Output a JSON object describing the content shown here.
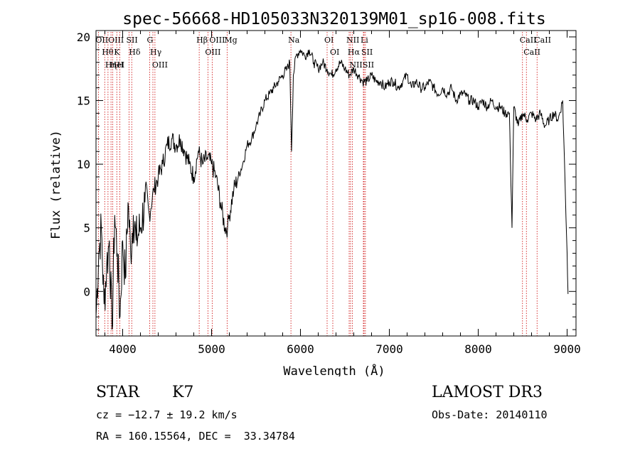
{
  "chart_data": {
    "type": "line",
    "title": "spec-56668-HD105033N320139M01_sp16-008.fits",
    "xlabel": "Wavelength (Å)",
    "ylabel": "Flux (relative)",
    "xlim": [
      3700,
      9100
    ],
    "ylim": [
      -3.5,
      20.5
    ],
    "xticks": [
      4000,
      5000,
      6000,
      7000,
      8000,
      9000
    ],
    "yticks": [
      0,
      5,
      10,
      15,
      20
    ],
    "series": [
      {
        "name": "flux",
        "x": [
          3700,
          3730,
          3760,
          3790,
          3820,
          3850,
          3880,
          3910,
          3940,
          3970,
          4000,
          4030,
          4060,
          4090,
          4120,
          4150,
          4200,
          4250,
          4300,
          4350,
          4400,
          4450,
          4500,
          4550,
          4600,
          4650,
          4700,
          4750,
          4800,
          4850,
          4900,
          4950,
          5000,
          5050,
          5100,
          5150,
          5180,
          5200,
          5250,
          5300,
          5350,
          5400,
          5450,
          5500,
          5550,
          5600,
          5650,
          5700,
          5750,
          5800,
          5850,
          5880,
          5900,
          5920,
          5950,
          6000,
          6050,
          6100,
          6150,
          6200,
          6250,
          6300,
          6350,
          6400,
          6450,
          6500,
          6550,
          6600,
          6650,
          6700,
          6750,
          6800,
          6850,
          6900,
          6950,
          7000,
          7050,
          7100,
          7150,
          7200,
          7250,
          7300,
          7350,
          7400,
          7450,
          7500,
          7550,
          7600,
          7650,
          7700,
          7750,
          7800,
          7850,
          7900,
          7950,
          8000,
          8050,
          8100,
          8150,
          8200,
          8250,
          8300,
          8350,
          8380,
          8400,
          8450,
          8500,
          8550,
          8600,
          8650,
          8700,
          8750,
          8800,
          8850,
          8900,
          8950,
          9000,
          9010
        ],
        "y": [
          -2,
          3,
          5,
          -1,
          2,
          4,
          -3,
          6,
          3,
          -2,
          4,
          1,
          7,
          3,
          6,
          4,
          5,
          7,
          6,
          8,
          9,
          10,
          11.5,
          12,
          11.5,
          12,
          11,
          10,
          9,
          11,
          10,
          10.5,
          10,
          9,
          7,
          5,
          5,
          6,
          8,
          9,
          10,
          11.5,
          12,
          13,
          14,
          15,
          15.5,
          16,
          16.5,
          17,
          17.5,
          18,
          11,
          17,
          18.5,
          19,
          18.5,
          19,
          18,
          17.5,
          18,
          17.5,
          17,
          17.5,
          18,
          17.5,
          17,
          17.5,
          17,
          16.5,
          16.5,
          17,
          16.5,
          16.5,
          16,
          16.5,
          16.5,
          16,
          16.5,
          17,
          16,
          16.5,
          16,
          16,
          16.5,
          16,
          15.5,
          16,
          15.5,
          16,
          15,
          15.5,
          15.5,
          15,
          15,
          14.5,
          15,
          14.5,
          15,
          14.5,
          14.5,
          14,
          14,
          5,
          14.5,
          13,
          14,
          13.5,
          14,
          13.5,
          14,
          13,
          13.5,
          14,
          13.5,
          15,
          3,
          -0.2
        ]
      }
    ],
    "spectral_lines": [
      {
        "label": "Hθ",
        "x": 3798
      },
      {
        "label": "OII",
        "x": 3727
      },
      {
        "label": "OIII",
        "x": 3869
      },
      {
        "label": "HeI",
        "x": 3889
      },
      {
        "label": "Hη",
        "x": 3835
      },
      {
        "label": "K",
        "x": 3934
      },
      {
        "label": "H",
        "x": 3968
      },
      {
        "label": "SII",
        "x": 4072
      },
      {
        "label": "Hδ",
        "x": 4102
      },
      {
        "label": "OIII",
        "x": 4363
      },
      {
        "label": "Hγ",
        "x": 4340
      },
      {
        "label": "G",
        "x": 4304
      },
      {
        "label": "OIII",
        "x": 4959
      },
      {
        "label": "OIII",
        "x": 5007
      },
      {
        "label": "Hβ",
        "x": 4861
      },
      {
        "label": "Mg",
        "x": 5175
      },
      {
        "label": "Na",
        "x": 5893
      },
      {
        "label": "OI",
        "x": 6300
      },
      {
        "label": "OI",
        "x": 6364
      },
      {
        "label": "Hα",
        "x": 6563
      },
      {
        "label": "NII",
        "x": 6548
      },
      {
        "label": "NII",
        "x": 6583
      },
      {
        "label": "SII",
        "x": 6716
      },
      {
        "label": "SII",
        "x": 6731
      },
      {
        "label": "Li",
        "x": 6708
      },
      {
        "label": "CaII",
        "x": 8498
      },
      {
        "label": "CaII",
        "x": 8542
      },
      {
        "label": "CaII",
        "x": 8662
      }
    ]
  },
  "info": {
    "object_type": "STAR",
    "subclass": "K7",
    "survey": "LAMOST DR3",
    "cz": "cz = −12.7 ± 19.2 km/s",
    "obs_date": "Obs-Date: 20140110",
    "coords": "RA = 160.15564, DEC =  33.34784"
  },
  "colors": {
    "axes": "#000000",
    "line": "#000000",
    "marker_lines": "#cc0000"
  }
}
